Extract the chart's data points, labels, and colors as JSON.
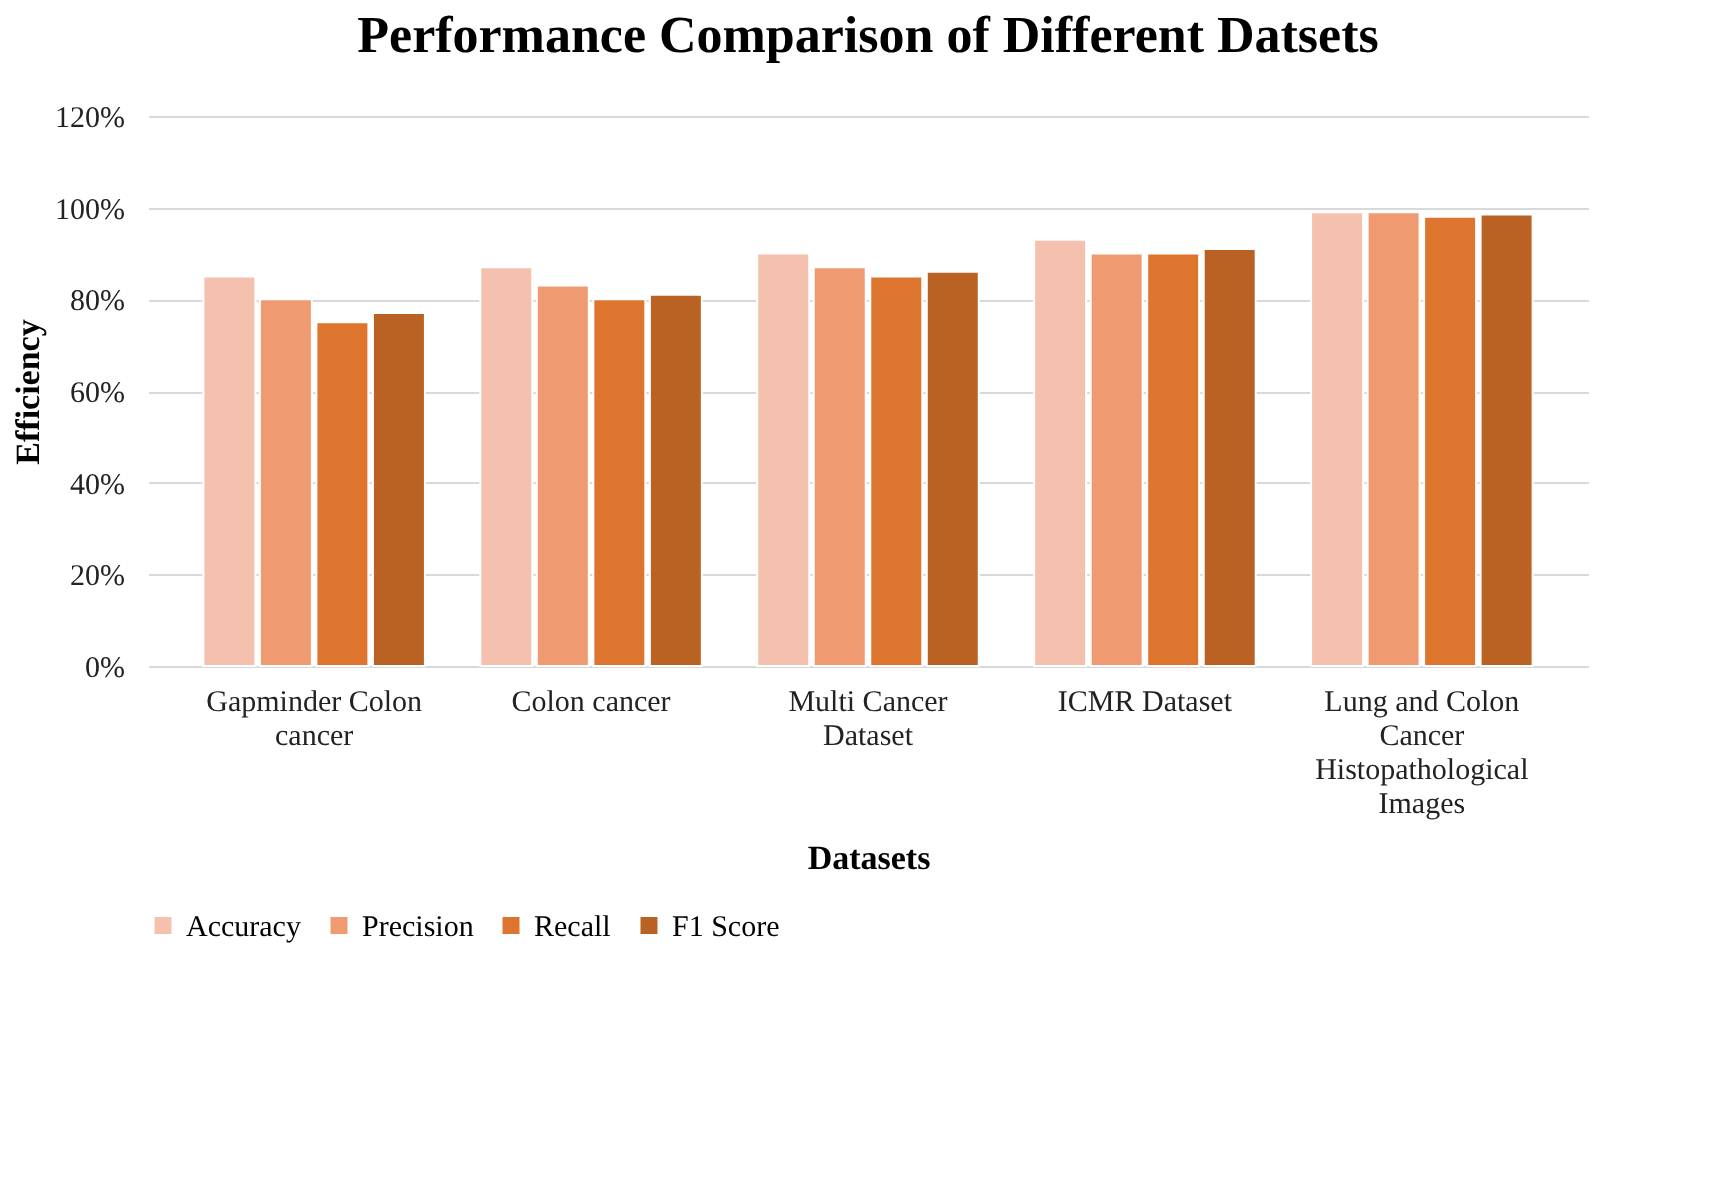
{
  "chart_data": {
    "type": "bar",
    "title": "Performance Comparison of Different Datsets",
    "xlabel": "Datasets",
    "ylabel": "Efficiency",
    "categories": [
      "Gapminder Colon cancer",
      "Colon cancer",
      "Multi Cancer Dataset",
      "ICMR Dataset",
      "Lung and Colon Cancer Histopathological Images"
    ],
    "series": [
      {
        "name": "Accuracy",
        "color": "#f4c1ae",
        "values": [
          85,
          87,
          90,
          93,
          99
        ]
      },
      {
        "name": "Precision",
        "color": "#f09a72",
        "values": [
          80,
          83,
          87,
          90,
          99
        ]
      },
      {
        "name": "Recall",
        "color": "#de752e",
        "values": [
          75,
          80,
          85,
          90,
          98
        ]
      },
      {
        "name": "F1 Score",
        "color": "#b96224",
        "values": [
          77,
          81,
          86,
          91,
          98.5
        ]
      }
    ],
    "ylim": [
      0,
      120
    ],
    "yticks": [
      {
        "value": 0,
        "label": "0%"
      },
      {
        "value": 20,
        "label": "20%"
      },
      {
        "value": 40,
        "label": "40%"
      },
      {
        "value": 60,
        "label": "60%"
      },
      {
        "value": 80,
        "label": "80%"
      },
      {
        "value": 100,
        "label": "100%"
      },
      {
        "value": 120,
        "label": "120%"
      }
    ],
    "grid": "y",
    "legend": "bottom"
  }
}
